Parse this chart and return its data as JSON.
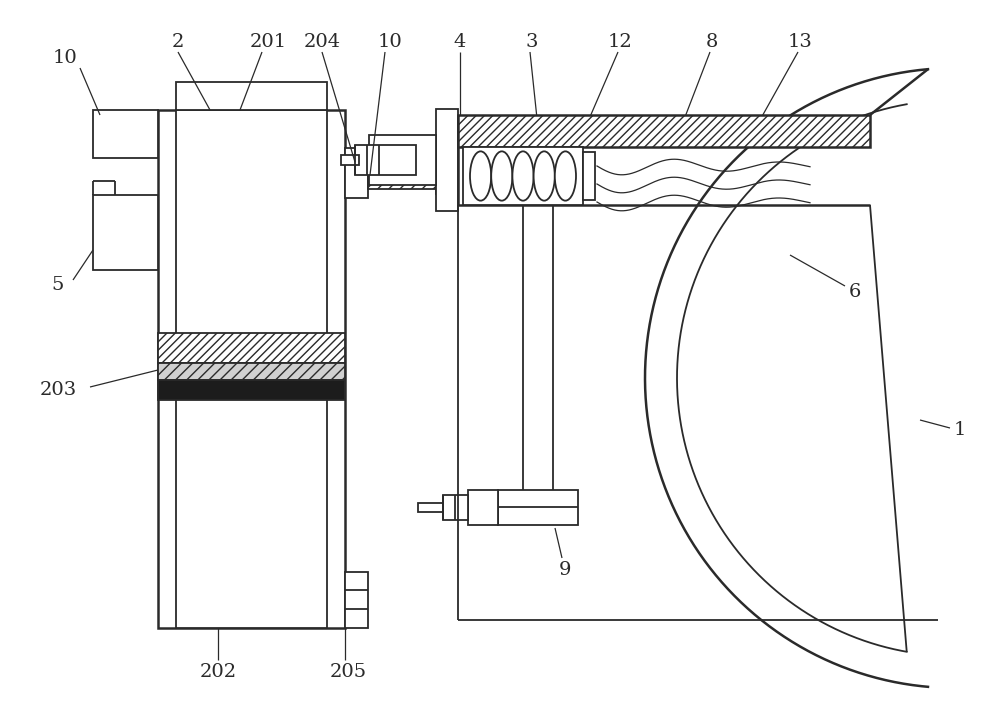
{
  "bg_color": "#ffffff",
  "line_color": "#2a2a2a",
  "figsize": [
    10.0,
    7.12
  ],
  "dpi": 100,
  "lw": 1.3,
  "lw2": 1.8
}
